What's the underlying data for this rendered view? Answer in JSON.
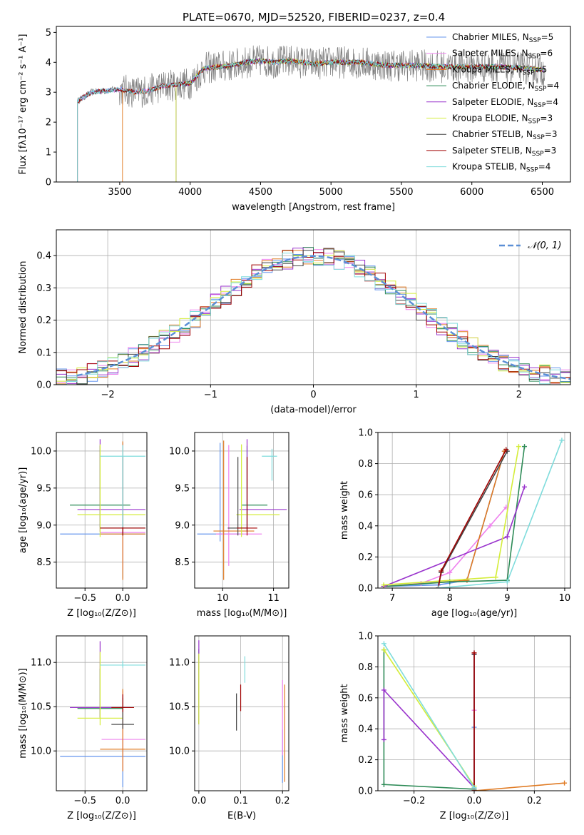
{
  "colors": {
    "chabrier_miles": "#6495ed",
    "salpeter_miles": "#ee82ee",
    "kroupa_miles": "#e07b24",
    "chabrier_elodie": "#2e8b57",
    "salpeter_elodie": "#9932cc",
    "kroupa_elodie": "#d4ed3a",
    "chabrier_stelib": "#444444",
    "salpeter_stelib": "#a00000",
    "kroupa_stelib": "#7fdcdc",
    "spectrum": "#808080",
    "grid": "#b0b0b0"
  },
  "chart_data": [
    {
      "id": "spectrum",
      "type": "line",
      "title": "PLATE=0670, MJD=52520, FIBERID=0237, z=0.4",
      "xlabel": "wavelength [Angstrom, rest frame]",
      "ylabel": "Flux [fλ10⁻¹⁷ erg cm⁻² s⁻¹ A⁻¹]",
      "xlim": [
        3050,
        6700
      ],
      "ylim": [
        0,
        5.2
      ],
      "xticks": [
        3500,
        4000,
        4500,
        5000,
        5500,
        6000,
        6500
      ],
      "yticks": [
        0,
        1,
        2,
        3,
        4,
        5
      ],
      "grid": false,
      "legend_position": "top-right",
      "legend": [
        {
          "label": "Chabrier MILES, N",
          "sub": "SSP",
          "tail": "=5",
          "color_key": "chabrier_miles"
        },
        {
          "label": "Salpeter MILES, N",
          "sub": "SSP",
          "tail": "=6",
          "color_key": "salpeter_miles"
        },
        {
          "label": "Kroupa MILES, N",
          "sub": "SSP",
          "tail": "=5",
          "color_key": "kroupa_miles"
        },
        {
          "label": "Chabrier ELODIE, N",
          "sub": "SSP",
          "tail": "=4",
          "color_key": "chabrier_elodie"
        },
        {
          "label": "Salpeter ELODIE, N",
          "sub": "SSP",
          "tail": "=4",
          "color_key": "salpeter_elodie"
        },
        {
          "label": "Kroupa ELODIE, N",
          "sub": "SSP",
          "tail": "=3",
          "color_key": "kroupa_elodie"
        },
        {
          "label": "Chabrier STELIB, N",
          "sub": "SSP",
          "tail": "=3",
          "color_key": "chabrier_stelib"
        },
        {
          "label": "Salpeter STELIB, N",
          "sub": "SSP",
          "tail": "=3",
          "color_key": "salpeter_stelib"
        },
        {
          "label": "Kroupa STELIB, N",
          "sub": "SSP",
          "tail": "=4",
          "color_key": "kroupa_stelib"
        }
      ],
      "continuum": {
        "x": [
          3200,
          3300,
          3400,
          3500,
          3600,
          3700,
          3800,
          3900,
          4000,
          4100,
          4200,
          4300,
          4400,
          4500,
          4600,
          4700,
          4800,
          4900,
          5000,
          5200,
          5400,
          5600,
          5800,
          6000,
          6200,
          6400,
          6500
        ],
        "y": [
          2.7,
          3.0,
          3.05,
          3.1,
          3.0,
          3.05,
          3.2,
          3.25,
          3.3,
          3.8,
          3.85,
          3.9,
          4.0,
          4.05,
          4.0,
          4.05,
          4.0,
          3.95,
          4.0,
          4.0,
          3.9,
          3.9,
          3.85,
          3.85,
          3.85,
          3.8,
          3.75
        ]
      }
    },
    {
      "id": "residuals",
      "type": "histogram",
      "xlabel": "(data-model)/error",
      "ylabel": "Normed distribution",
      "xlim": [
        -2.5,
        2.5
      ],
      "ylim": [
        0,
        0.48
      ],
      "xticks": [
        -2,
        -1,
        0,
        1,
        2
      ],
      "xtick_labels": [
        "−2",
        "−1",
        "0",
        "1",
        "2"
      ],
      "yticks": [
        0.0,
        0.1,
        0.2,
        0.3,
        0.4
      ],
      "yticklabels": [
        "0.0",
        "0.1",
        "0.2",
        "0.3",
        "0.4"
      ],
      "grid": true,
      "legend_position": "top-right",
      "legend_label": "𝒩(0, 1)",
      "bin_width": 0.1,
      "gaussian": {
        "mean": 0,
        "sigma": 1
      }
    },
    {
      "id": "age_vs_Z",
      "type": "errorbar",
      "xlabel": "Z [log₁₀(Z/Z⊙)]",
      "ylabel": "age  [log₁₀(age/yr)]",
      "xlim": [
        -0.88,
        0.32
      ],
      "ylim": [
        8.15,
        10.25
      ],
      "xticks": [
        -0.5,
        0.0
      ],
      "xtick_labels": [
        "−0.5",
        "0.0"
      ],
      "yticks": [
        8.5,
        9.0,
        9.5,
        10.0
      ],
      "yticklabels": [
        "8.5",
        "9.0",
        "9.5",
        "10.0"
      ],
      "grid": true,
      "points": [
        {
          "k": "chabrier_miles",
          "x": 0.0,
          "y": 8.88,
          "xerr": [
            0.83,
            0.3
          ],
          "yerr": [
            0.6,
            1.23
          ]
        },
        {
          "k": "salpeter_miles",
          "x": 0.0,
          "y": 8.9,
          "xerr": [
            0.3,
            0.3
          ],
          "yerr": [
            0.5,
            1.2
          ]
        },
        {
          "k": "kroupa_miles",
          "x": 0.0,
          "y": 8.88,
          "xerr": [
            0.3,
            0.3
          ],
          "yerr": [
            0.62,
            1.25
          ]
        },
        {
          "k": "chabrier_elodie",
          "x": -0.3,
          "y": 9.27,
          "xerr": [
            0.4,
            0.4
          ],
          "yerr": [
            0.3,
            0.8
          ]
        },
        {
          "k": "salpeter_elodie",
          "x": -0.3,
          "y": 9.21,
          "xerr": [
            0.3,
            0.6
          ],
          "yerr": [
            0.3,
            0.95
          ]
        },
        {
          "k": "kroupa_elodie",
          "x": -0.3,
          "y": 9.14,
          "xerr": [
            0.3,
            0.6
          ],
          "yerr": [
            0.3,
            0.95
          ]
        },
        {
          "k": "chabrier_stelib",
          "x": 0.0,
          "y": 8.96,
          "xerr": [
            0.3,
            0.3
          ],
          "yerr": [
            0.1,
            0.97
          ]
        },
        {
          "k": "salpeter_stelib",
          "x": 0.0,
          "y": 8.96,
          "xerr": [
            0.3,
            0.3
          ],
          "yerr": [
            0.1,
            0.97
          ]
        },
        {
          "k": "kroupa_stelib",
          "x": 0.0,
          "y": 9.93,
          "xerr": [
            0.3,
            0.3
          ],
          "yerr": [
            0.96,
            0.15
          ]
        }
      ]
    },
    {
      "id": "age_vs_mass",
      "type": "errorbar",
      "xlabel": "mass [log₁₀(M/M⊙)]",
      "ylabel": "",
      "xlim": [
        9.45,
        11.3
      ],
      "ylim": [
        8.15,
        10.25
      ],
      "xticks": [
        10,
        11
      ],
      "xtick_labels": [
        "10",
        "11"
      ],
      "yticks": [
        8.5,
        9.0,
        9.5,
        10.0
      ],
      "yticklabels": [
        "8.5",
        "9.0",
        "9.5",
        "10.0"
      ],
      "grid": true,
      "points": [
        {
          "k": "chabrier_miles",
          "x": 9.95,
          "y": 8.88,
          "xerr": [
            0.45,
            0.45
          ],
          "yerr": [
            0.1,
            1.23
          ]
        },
        {
          "k": "salpeter_miles",
          "x": 10.12,
          "y": 8.88,
          "xerr": [
            0.25,
            0.65
          ],
          "yerr": [
            0.43,
            1.2
          ]
        },
        {
          "k": "kroupa_miles",
          "x": 10.02,
          "y": 8.92,
          "xerr": [
            0.2,
            0.6
          ],
          "yerr": [
            0.66,
            1.22
          ]
        },
        {
          "k": "chabrier_elodie",
          "x": 10.48,
          "y": 9.27,
          "xerr": [
            0.1,
            0.4
          ],
          "yerr": [
            0.35,
            0.8
          ]
        },
        {
          "k": "salpeter_elodie",
          "x": 10.48,
          "y": 9.21,
          "xerr": [
            0.15,
            0.78
          ],
          "yerr": [
            0.3,
            0.95
          ]
        },
        {
          "k": "kroupa_elodie",
          "x": 10.37,
          "y": 9.14,
          "xerr": [
            0.1,
            0.75
          ],
          "yerr": [
            0.3,
            0.95
          ]
        },
        {
          "k": "chabrier_stelib",
          "x": 10.3,
          "y": 8.96,
          "xerr": [
            0.2,
            0.2
          ],
          "yerr": [
            0.1,
            0.96
          ]
        },
        {
          "k": "salpeter_stelib",
          "x": 10.48,
          "y": 8.96,
          "xerr": [
            0.2,
            0.2
          ],
          "yerr": [
            0.1,
            0.96
          ]
        },
        {
          "k": "kroupa_stelib",
          "x": 10.97,
          "y": 9.93,
          "xerr": [
            0.2,
            0.1
          ],
          "yerr": [
            0.33,
            0.1
          ]
        }
      ]
    },
    {
      "id": "weight_vs_age",
      "type": "line",
      "xlabel": "age  [log₁₀(age/yr)]",
      "ylabel": "mass weight",
      "xlim": [
        6.75,
        10.1
      ],
      "ylim": [
        0,
        1.0
      ],
      "xticks": [
        7,
        8,
        9,
        10
      ],
      "xtick_labels": [
        "7",
        "8",
        "9",
        "10"
      ],
      "yticks": [
        0.0,
        0.2,
        0.4,
        0.6,
        0.8,
        1.0
      ],
      "yticklabels": [
        "0.0",
        "0.2",
        "0.4",
        "0.6",
        "0.8",
        "1.0"
      ],
      "grid": true,
      "series": [
        {
          "k": "chabrier_miles",
          "x": [
            6.85,
            7.8,
            8.3,
            8.95
          ],
          "y": [
            0.01,
            0.02,
            0.05,
            0.88
          ]
        },
        {
          "k": "salpeter_miles",
          "x": [
            6.85,
            7.5,
            8.0,
            8.7,
            8.98
          ],
          "y": [
            0.01,
            0.03,
            0.1,
            0.4,
            0.52
          ]
        },
        {
          "k": "kroupa_miles",
          "x": [
            6.85,
            8.3,
            8.95
          ],
          "y": [
            0.01,
            0.05,
            0.88
          ]
        },
        {
          "k": "chabrier_elodie",
          "x": [
            6.85,
            8.0,
            9.0,
            9.3
          ],
          "y": [
            0.01,
            0.04,
            0.05,
            0.91
          ]
        },
        {
          "k": "salpeter_elodie",
          "x": [
            6.85,
            9.0,
            9.3
          ],
          "y": [
            0.01,
            0.33,
            0.65
          ]
        },
        {
          "k": "kroupa_elodie",
          "x": [
            6.85,
            8.8,
            9.2
          ],
          "y": [
            0.02,
            0.07,
            0.91
          ]
        },
        {
          "k": "chabrier_stelib",
          "x": [
            7.8,
            7.85,
            9.0
          ],
          "y": [
            0.0,
            0.1,
            0.88
          ]
        },
        {
          "k": "salpeter_stelib",
          "x": [
            7.8,
            7.85,
            8.98
          ],
          "y": [
            0.0,
            0.11,
            0.89
          ]
        },
        {
          "k": "kroupa_stelib",
          "x": [
            7.8,
            9.0,
            9.95
          ],
          "y": [
            0.0,
            0.04,
            0.95
          ]
        }
      ]
    },
    {
      "id": "mass_vs_Z",
      "type": "errorbar",
      "xlabel": "Z [log₁₀(Z/Z⊙)]",
      "ylabel": "mass [log₁₀(M/M⊙)]",
      "xlim": [
        -0.88,
        0.32
      ],
      "ylim": [
        9.55,
        11.3
      ],
      "xticks": [
        -0.5,
        0.0
      ],
      "xtick_labels": [
        "−0.5",
        "0.0"
      ],
      "yticks": [
        10.0,
        10.5,
        11.0
      ],
      "yticklabels": [
        "10.0",
        "10.5",
        "11.0"
      ],
      "grid": true,
      "points": [
        {
          "k": "chabrier_miles",
          "x": 0.0,
          "y": 9.94,
          "xerr": [
            0.83,
            0.3
          ],
          "yerr": [
            0.35,
            0.2
          ]
        },
        {
          "k": "salpeter_miles",
          "x": 0.0,
          "y": 10.13,
          "xerr": [
            0.28,
            0.3
          ],
          "yerr": [
            0.35,
            0.55
          ]
        },
        {
          "k": "kroupa_miles",
          "x": 0.0,
          "y": 10.02,
          "xerr": [
            0.3,
            0.3
          ],
          "yerr": [
            0.25,
            0.68
          ]
        },
        {
          "k": "chabrier_elodie",
          "x": -0.3,
          "y": 10.48,
          "xerr": [
            0.3,
            0.3
          ],
          "yerr": [
            0.1,
            0.45
          ]
        },
        {
          "k": "salpeter_elodie",
          "x": -0.3,
          "y": 10.49,
          "xerr": [
            0.4,
            0.4
          ],
          "yerr": [
            0.12,
            0.75
          ]
        },
        {
          "k": "kroupa_elodie",
          "x": -0.3,
          "y": 10.37,
          "xerr": [
            0.3,
            0.3
          ],
          "yerr": [
            0.08,
            0.75
          ]
        },
        {
          "k": "chabrier_stelib",
          "x": 0.0,
          "y": 10.3,
          "xerr": [
            0.15,
            0.15
          ],
          "yerr": [
            0.05,
            0.3
          ]
        },
        {
          "k": "salpeter_stelib",
          "x": 0.0,
          "y": 10.49,
          "xerr": [
            0.15,
            0.15
          ],
          "yerr": [
            0.05,
            0.15
          ]
        },
        {
          "k": "kroupa_stelib",
          "x": 0.0,
          "y": 10.97,
          "xerr": [
            0.3,
            0.3
          ],
          "yerr": [
            0.03,
            0.05
          ]
        }
      ]
    },
    {
      "id": "mass_vs_ebv",
      "type": "errorbar",
      "xlabel": "E(B-V)",
      "ylabel": "",
      "xlim": [
        -0.01,
        0.215
      ],
      "ylim": [
        9.55,
        11.3
      ],
      "xticks": [
        0.0,
        0.1,
        0.2
      ],
      "xtick_labels": [
        "0.0",
        "0.1",
        "0.2"
      ],
      "yticks": [
        10.0,
        10.5,
        11.0
      ],
      "yticklabels": [
        "10.0",
        "10.5",
        "11.0"
      ],
      "grid": true,
      "points": [
        {
          "k": "chabrier_miles",
          "x": 0.2,
          "y": 9.94,
          "xerr": [
            0.0,
            0.0
          ],
          "yerr": [
            0.3,
            0.3
          ]
        },
        {
          "k": "salpeter_miles",
          "x": 0.2,
          "y": 10.3,
          "xerr": [
            0.0,
            0.0
          ],
          "yerr": [
            0.35,
            0.5
          ]
        },
        {
          "k": "kroupa_miles",
          "x": 0.205,
          "y": 10.2,
          "xerr": [
            0.0,
            0.0
          ],
          "yerr": [
            0.55,
            0.55
          ]
        },
        {
          "k": "chabrier_elodie",
          "x": 0.0,
          "y": 10.7,
          "xerr": [
            0.0,
            0.0
          ],
          "yerr": [
            0.4,
            0.45
          ]
        },
        {
          "k": "salpeter_elodie",
          "x": 0.0,
          "y": 10.8,
          "xerr": [
            0.0,
            0.0
          ],
          "yerr": [
            0.5,
            0.45
          ]
        },
        {
          "k": "kroupa_elodie",
          "x": 0.0,
          "y": 10.7,
          "xerr": [
            0.0,
            0.0
          ],
          "yerr": [
            0.4,
            0.4
          ]
        },
        {
          "k": "chabrier_stelib",
          "x": 0.09,
          "y": 10.45,
          "xerr": [
            0.0,
            0.0
          ],
          "yerr": [
            0.22,
            0.2
          ]
        },
        {
          "k": "salpeter_stelib",
          "x": 0.1,
          "y": 10.6,
          "xerr": [
            0.0,
            0.0
          ],
          "yerr": [
            0.15,
            0.15
          ]
        },
        {
          "k": "kroupa_stelib",
          "x": 0.11,
          "y": 10.92,
          "xerr": [
            0.0,
            0.0
          ],
          "yerr": [
            0.15,
            0.15
          ]
        }
      ]
    },
    {
      "id": "weight_vs_Z",
      "type": "line",
      "xlabel": "Z [log₁₀(Z/Z⊙)]",
      "ylabel": "mass weight",
      "xlim": [
        -0.32,
        0.32
      ],
      "ylim": [
        0,
        1.0
      ],
      "xticks": [
        -0.2,
        0.0,
        0.2
      ],
      "xtick_labels": [
        "−0.2",
        "0.0",
        "0.2"
      ],
      "yticks": [
        0.0,
        0.2,
        0.4,
        0.6,
        0.8,
        1.0
      ],
      "yticklabels": [
        "0.0",
        "0.2",
        "0.4",
        "0.6",
        "0.8",
        "1.0"
      ],
      "grid": true,
      "series": [
        {
          "k": "chabrier_miles",
          "x": [
            0.0,
            0.0,
            0.0
          ],
          "y": [
            0.01,
            0.41,
            0.88
          ]
        },
        {
          "k": "salpeter_miles",
          "x": [
            0.0,
            0.0,
            0.0
          ],
          "y": [
            0.01,
            0.52,
            0.88
          ]
        },
        {
          "k": "kroupa_miles",
          "x": [
            0.0,
            0.3
          ],
          "y": [
            0.0,
            0.05
          ]
        },
        {
          "k": "chabrier_elodie",
          "x": [
            -0.3,
            -0.3,
            0.0
          ],
          "y": [
            0.91,
            0.04,
            0.01
          ]
        },
        {
          "k": "salpeter_elodie",
          "x": [
            -0.3,
            -0.3,
            0.0
          ],
          "y": [
            0.33,
            0.65,
            0.02
          ]
        },
        {
          "k": "kroupa_elodie",
          "x": [
            -0.3,
            0.0
          ],
          "y": [
            0.91,
            0.03
          ]
        },
        {
          "k": "chabrier_stelib",
          "x": [
            0.0,
            0.0
          ],
          "y": [
            0.0,
            0.88
          ]
        },
        {
          "k": "salpeter_stelib",
          "x": [
            0.0,
            0.0
          ],
          "y": [
            0.0,
            0.89
          ]
        },
        {
          "k": "kroupa_stelib",
          "x": [
            -0.3,
            0.0
          ],
          "y": [
            0.95,
            0.02
          ]
        }
      ]
    }
  ]
}
